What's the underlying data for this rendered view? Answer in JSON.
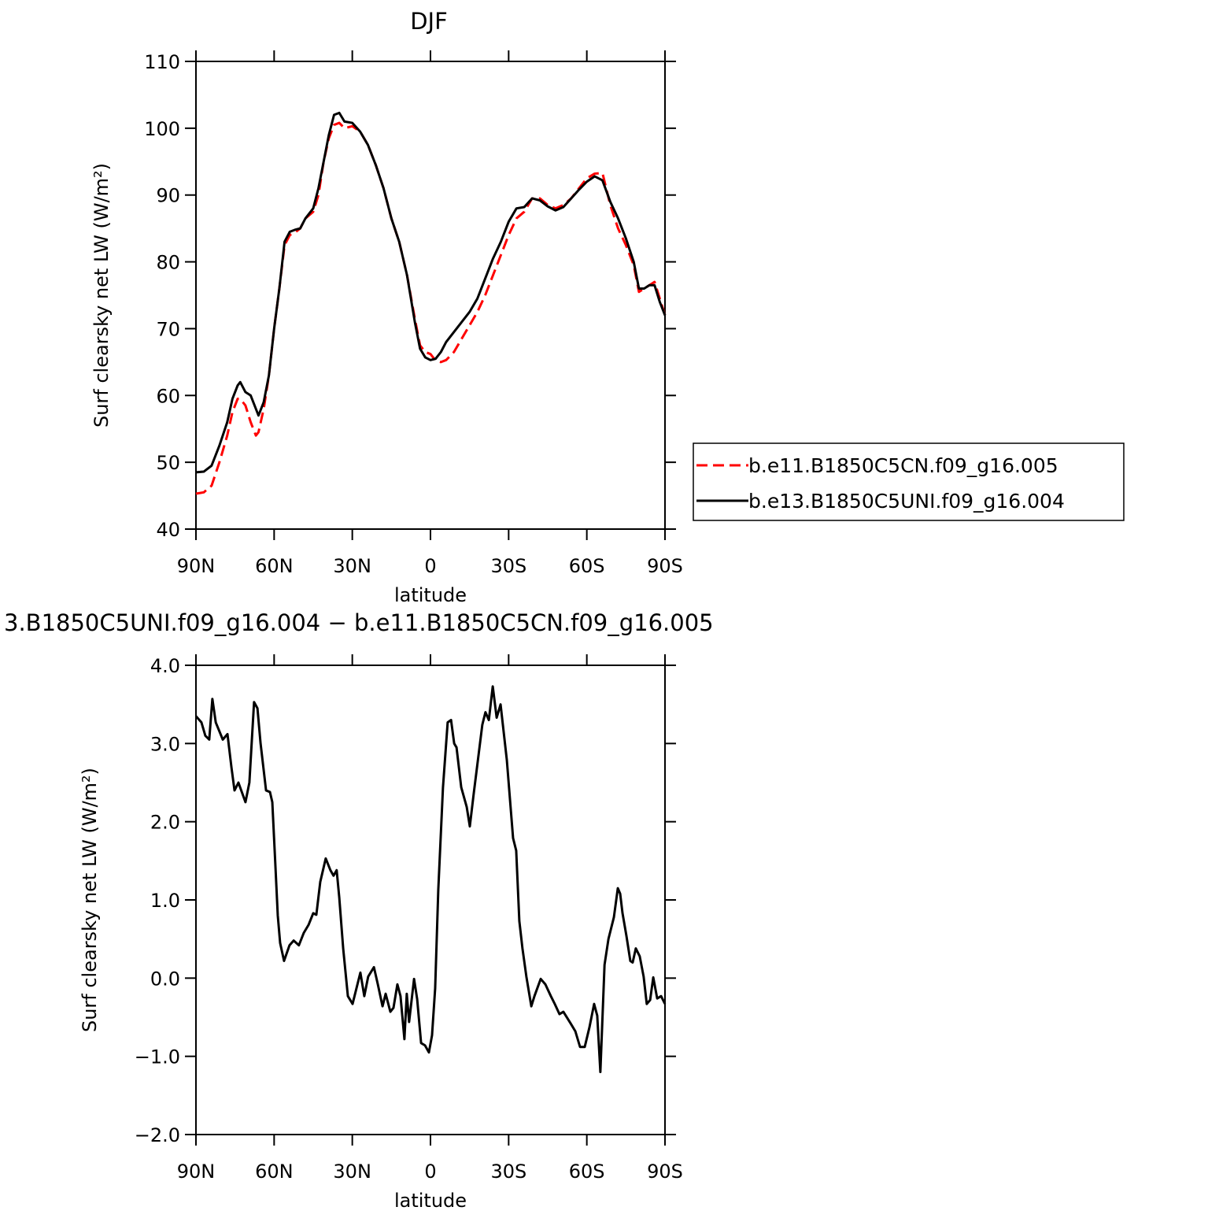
{
  "chart_data": [
    {
      "type": "line",
      "title": "DJF",
      "xlabel": "latitude",
      "ylabel": "Surf clearsky net LW (W/m²)",
      "x": [
        90,
        87,
        84,
        81,
        78,
        76,
        74,
        73,
        71,
        69,
        67,
        66,
        64,
        62,
        60,
        58,
        56,
        54,
        52,
        50,
        48,
        45,
        43,
        41,
        39,
        37,
        35,
        33,
        30,
        27,
        24,
        21,
        18,
        15,
        12,
        9,
        6,
        4,
        2,
        0,
        -2,
        -4,
        -6,
        -9,
        -12,
        -15,
        -18,
        -21,
        -24,
        -27,
        -30,
        -33,
        -36,
        -39,
        -42,
        -45,
        -48,
        -51,
        -54,
        -57,
        -60,
        -63,
        -66,
        -69,
        -72,
        -75,
        -78,
        -80,
        -82,
        -84,
        -86,
        -88,
        -90
      ],
      "series": [
        {
          "name": "b.e11.B1850C5CN.f09_g16.005",
          "color": "#ff0000",
          "dashed": true,
          "values": [
            45.3,
            45.5,
            46.5,
            50,
            54,
            57.5,
            59.5,
            59.5,
            58.5,
            56,
            54,
            54.5,
            58,
            63,
            70,
            76,
            82.5,
            84,
            84.4,
            85,
            86.5,
            87.5,
            90,
            95,
            98.5,
            100.5,
            100.8,
            100,
            100.3,
            99.5,
            97.5,
            94.5,
            91,
            86.5,
            83,
            78,
            71.5,
            67.5,
            66.5,
            66.2,
            65.2,
            65,
            65.3,
            66.5,
            68.5,
            70.5,
            72.5,
            75,
            78,
            81,
            84,
            86.5,
            87.5,
            89.5,
            89.5,
            88.5,
            88,
            88.5,
            89.5,
            91,
            92.5,
            93.2,
            93.3,
            88.5,
            85,
            82.5,
            79.5,
            75.5,
            76,
            76.5,
            77,
            74.5,
            72
          ]
        },
        {
          "name": "b.e13.B1850C5UNI.f09_g16.004",
          "color": "#000000",
          "dashed": false,
          "values": [
            48.5,
            48.6,
            49.5,
            52.5,
            56,
            59.5,
            61.5,
            62,
            60.5,
            60,
            58,
            57,
            59,
            63,
            70,
            76,
            83,
            84.5,
            84.8,
            85,
            86.5,
            88,
            91,
            95,
            99,
            102,
            102.3,
            101,
            100.8,
            99.5,
            97.5,
            94.5,
            91,
            86.5,
            83,
            78,
            71,
            67,
            65.7,
            65.3,
            65.5,
            66.5,
            68,
            69.5,
            71,
            72.5,
            74.5,
            77.5,
            80.5,
            83,
            86,
            88,
            88.2,
            89.5,
            89.2,
            88.3,
            87.7,
            88.2,
            89.5,
            90.8,
            92,
            92.8,
            92.2,
            89,
            86.5,
            83.5,
            80,
            76,
            76,
            76.5,
            76.5,
            74,
            72
          ]
        }
      ],
      "xlim": [
        90,
        -90
      ],
      "xticks": [
        {
          "value": 90,
          "label": "90N"
        },
        {
          "value": 60,
          "label": "60N"
        },
        {
          "value": 30,
          "label": "30N"
        },
        0,
        {
          "value": -30,
          "label": "30S"
        },
        {
          "value": -60,
          "label": "60S"
        },
        {
          "value": -90,
          "label": "90S"
        }
      ],
      "ylim": [
        40,
        110
      ],
      "yticks": [
        40,
        50,
        60,
        70,
        80,
        90,
        100,
        110
      ],
      "legend": "right"
    },
    {
      "type": "line",
      "title": "3.B1850C5UNI.f09_g16.004 − b.e11.B1850C5CN.f09_g16.005",
      "xlabel": "latitude",
      "ylabel": "Surf clearsky net LW (W/m²)",
      "x": [
        90,
        87.9,
        86.4,
        84.9,
        83.7,
        82.4,
        79.7,
        77.9,
        76.4,
        75.2,
        73.7,
        71,
        69.5,
        67.7,
        66.4,
        65.2,
        63.1,
        61.6,
        60.7,
        59.5,
        58.6,
        57.7,
        56.2,
        54.1,
        52.5,
        50.5,
        48.6,
        46.8,
        45,
        43.8,
        42.3,
        40.2,
        38.4,
        37.2,
        36,
        35,
        33.5,
        31.7,
        29.9,
        28.4,
        26.9,
        25.4,
        23.9,
        21.7,
        20.2,
        18.4,
        17.2,
        15.4,
        14.2,
        12.7,
        11.5,
        10,
        9.1,
        8.2,
        6.3,
        5.1,
        3.6,
        2.1,
        0.6,
        -0.6,
        -1.8,
        -3,
        -4.8,
        -6.6,
        -7.9,
        -9.1,
        -10,
        -11.8,
        -13.9,
        -15.1,
        -16.6,
        -18.1,
        -19.9,
        -21.1,
        -22.4,
        -23.9,
        -25.4,
        -26.9,
        -29.3,
        -31.7,
        -32.9,
        -34.1,
        -35.3,
        -36.8,
        -38.7,
        -39.9,
        -42.3,
        -44.1,
        -46.2,
        -47.7,
        -49.5,
        -51,
        -53.8,
        -55.6,
        -57.4,
        -59.2,
        -61,
        -62.8,
        -64,
        -65.2,
        -66.8,
        -68.3,
        -70.4,
        -71.9,
        -72.8,
        -73.7,
        -75.2,
        -76.7,
        -77.6,
        -78.8,
        -80.3,
        -81.8,
        -83,
        -84.3,
        -85.5,
        -87,
        -88.5,
        -90
      ],
      "values": [
        3.35,
        3.27,
        3.1,
        3.05,
        3.57,
        3.27,
        3.05,
        3.12,
        2.7,
        2.4,
        2.5,
        2.25,
        2.5,
        3.53,
        3.45,
        3.0,
        2.4,
        2.38,
        2.25,
        1.43,
        0.8,
        0.45,
        0.22,
        0.42,
        0.48,
        0.42,
        0.58,
        0.68,
        0.83,
        0.81,
        1.23,
        1.53,
        1.38,
        1.31,
        1.38,
        1.03,
        0.38,
        -0.23,
        -0.33,
        -0.13,
        0.07,
        -0.23,
        0.02,
        0.14,
        -0.08,
        -0.36,
        -0.2,
        -0.43,
        -0.38,
        -0.08,
        -0.23,
        -0.78,
        -0.2,
        -0.56,
        -0.01,
        -0.27,
        -0.83,
        -0.86,
        -0.95,
        -0.73,
        -0.13,
        1.13,
        2.44,
        3.27,
        3.3,
        3.0,
        2.95,
        2.44,
        2.19,
        1.94,
        2.36,
        2.76,
        3.24,
        3.4,
        3.3,
        3.73,
        3.33,
        3.5,
        2.79,
        1.79,
        1.63,
        0.73,
        0.38,
        0.02,
        -0.36,
        -0.23,
        -0.01,
        -0.08,
        -0.23,
        -0.33,
        -0.46,
        -0.43,
        -0.58,
        -0.68,
        -0.88,
        -0.88,
        -0.63,
        -0.33,
        -0.48,
        -1.2,
        0.17,
        0.5,
        0.78,
        1.15,
        1.08,
        0.83,
        0.54,
        0.22,
        0.2,
        0.38,
        0.28,
        0.02,
        -0.33,
        -0.28,
        0.01,
        -0.26,
        -0.23,
        -0.33
      ],
      "color": "#000000",
      "xlim": [
        90,
        -90
      ],
      "xticks": [
        {
          "value": 90,
          "label": "90N"
        },
        {
          "value": 60,
          "label": "60N"
        },
        {
          "value": 30,
          "label": "30N"
        },
        0,
        {
          "value": -30,
          "label": "30S"
        },
        {
          "value": -60,
          "label": "60S"
        },
        {
          "value": -90,
          "label": "90S"
        }
      ],
      "ylim": [
        -2,
        4
      ],
      "yticks": [
        {
          "value": 4,
          "label": "4.0"
        },
        {
          "value": 3,
          "label": "3.0"
        },
        {
          "value": 2,
          "label": "2.0"
        },
        {
          "value": 1,
          "label": "1.0"
        },
        {
          "value": 0,
          "label": "0.0"
        },
        {
          "value": -1,
          "label": "−1.0"
        },
        {
          "value": -2,
          "label": "−2.0"
        }
      ]
    }
  ]
}
